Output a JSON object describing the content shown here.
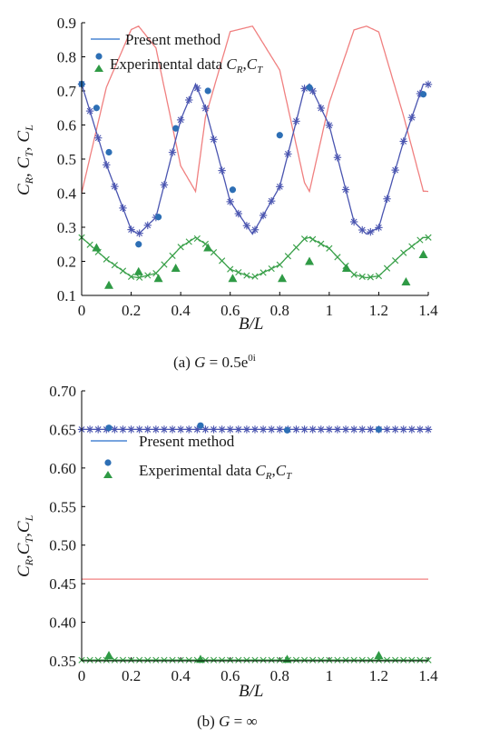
{
  "chart_data": [
    {
      "type": "line",
      "caption": "(a) G = 0.5e0i",
      "xlabel": "B/L",
      "ylabel": "CR, CT, CL",
      "xlim": [
        0,
        1.4
      ],
      "ylim": [
        0.1,
        0.9
      ],
      "x_ticks": [
        "0",
        "0.2",
        "0.4",
        "0.6",
        "0.8",
        "1",
        "1.2",
        "1.4"
      ],
      "y_ticks": [
        "0.1",
        "0.2",
        "0.3",
        "0.4",
        "0.5",
        "0.6",
        "0.7",
        "0.8",
        "0.9"
      ],
      "legend": {
        "position": "top-left",
        "entries": [
          "Present method",
          "Experimental data CR, CT"
        ]
      },
      "grid": false,
      "colors": {
        "CR": "#4a55b0",
        "CT": "#3aa04a",
        "CL": "#f08080",
        "exp_CR": "#2d6fb5",
        "exp_CT": "#2f9a45",
        "present_method": "#4a86d4"
      },
      "series": [
        {
          "name": "Present method",
          "role": "legend line",
          "color": "#4a86d4"
        },
        {
          "name": "CL",
          "style": "line",
          "color": "#f08080",
          "x": [
            0,
            0.1,
            0.2,
            0.23,
            0.3,
            0.4,
            0.46,
            0.5,
            0.6,
            0.69,
            0.8,
            0.9,
            0.92,
            1.0,
            1.1,
            1.15,
            1.2,
            1.3,
            1.38,
            1.4
          ],
          "values": [
            0.401,
            0.711,
            0.88,
            0.89,
            0.826,
            0.48,
            0.405,
            0.623,
            0.874,
            0.89,
            0.761,
            0.431,
            0.405,
            0.665,
            0.879,
            0.89,
            0.873,
            0.627,
            0.406,
            0.405
          ]
        },
        {
          "name": "CR",
          "style": "line+star",
          "color": "#4a55b0",
          "x": [
            0,
            0.1,
            0.2,
            0.23,
            0.3,
            0.4,
            0.46,
            0.5,
            0.6,
            0.69,
            0.8,
            0.9,
            0.92,
            1.0,
            1.1,
            1.15,
            1.2,
            1.3,
            1.38,
            1.4
          ],
          "values": [
            0.72,
            0.483,
            0.293,
            0.28,
            0.329,
            0.615,
            0.72,
            0.649,
            0.375,
            0.28,
            0.419,
            0.707,
            0.72,
            0.599,
            0.316,
            0.28,
            0.299,
            0.552,
            0.72,
            0.719
          ]
        },
        {
          "name": "CT",
          "style": "line+cross",
          "color": "#3aa04a",
          "x": [
            0,
            0.1,
            0.2,
            0.23,
            0.3,
            0.4,
            0.46,
            0.5,
            0.6,
            0.69,
            0.8,
            0.9,
            0.92,
            1.0,
            1.1,
            1.15,
            1.2,
            1.3,
            1.38,
            1.4
          ],
          "values": [
            0.27,
            0.206,
            0.155,
            0.152,
            0.165,
            0.242,
            0.27,
            0.251,
            0.177,
            0.152,
            0.19,
            0.266,
            0.27,
            0.238,
            0.161,
            0.152,
            0.157,
            0.225,
            0.27,
            0.27
          ]
        },
        {
          "name": "Experimental data CR",
          "style": "circle",
          "color": "#2d6fb5",
          "x": [
            0.0,
            0.06,
            0.11,
            0.23,
            0.31,
            0.38,
            0.51,
            0.61,
            0.8,
            0.92,
            1.38
          ],
          "values": [
            0.72,
            0.65,
            0.52,
            0.25,
            0.33,
            0.59,
            0.7,
            0.41,
            0.57,
            0.71,
            0.69
          ]
        },
        {
          "name": "Experimental data CT",
          "style": "triangle",
          "color": "#2f9a45",
          "x": [
            0.06,
            0.11,
            0.23,
            0.31,
            0.38,
            0.51,
            0.61,
            0.81,
            0.92,
            1.07,
            1.31,
            1.38
          ],
          "values": [
            0.24,
            0.13,
            0.17,
            0.15,
            0.18,
            0.24,
            0.15,
            0.15,
            0.2,
            0.18,
            0.14,
            0.22
          ]
        }
      ]
    },
    {
      "type": "line",
      "caption": "(b) G = ∞",
      "xlabel": "B/L",
      "ylabel": "CR, CT, CL",
      "xlim": [
        0,
        1.4
      ],
      "ylim": [
        0.35,
        0.7
      ],
      "x_ticks": [
        "0",
        "0.2",
        "0.4",
        "0.6",
        "0.8",
        "1",
        "1.2",
        "1.4"
      ],
      "y_ticks": [
        "0.35",
        "0.40",
        "0.45",
        "0.50",
        "0.55",
        "0.60",
        "0.65",
        "0.70"
      ],
      "legend": {
        "position": "center-left",
        "entries": [
          "Present method",
          "Experimental data CR, CT"
        ]
      },
      "grid": false,
      "series": [
        {
          "name": "Present method",
          "role": "legend line",
          "color": "#4a86d4"
        },
        {
          "name": "CR",
          "style": "line+star",
          "color": "#4a55b0",
          "x": [
            0,
            1.4
          ],
          "values": [
            0.65,
            0.65
          ]
        },
        {
          "name": "CT",
          "style": "line+cross",
          "color": "#3aa04a",
          "x": [
            0,
            1.4
          ],
          "values": [
            0.351,
            0.351
          ]
        },
        {
          "name": "CL",
          "style": "line",
          "color": "#f08080",
          "x": [
            0,
            1.4
          ],
          "values": [
            0.456,
            0.456
          ]
        },
        {
          "name": "Experimental data CR",
          "style": "circle",
          "color": "#2d6fb5",
          "x": [
            0.11,
            0.48,
            0.83,
            1.2
          ],
          "values": [
            0.652,
            0.655,
            0.649,
            0.65
          ]
        },
        {
          "name": "Experimental data CT",
          "style": "triangle",
          "color": "#2f9a45",
          "x": [
            0.11,
            0.48,
            0.83,
            1.2
          ],
          "values": [
            0.357,
            0.352,
            0.352,
            0.357
          ]
        }
      ]
    }
  ]
}
